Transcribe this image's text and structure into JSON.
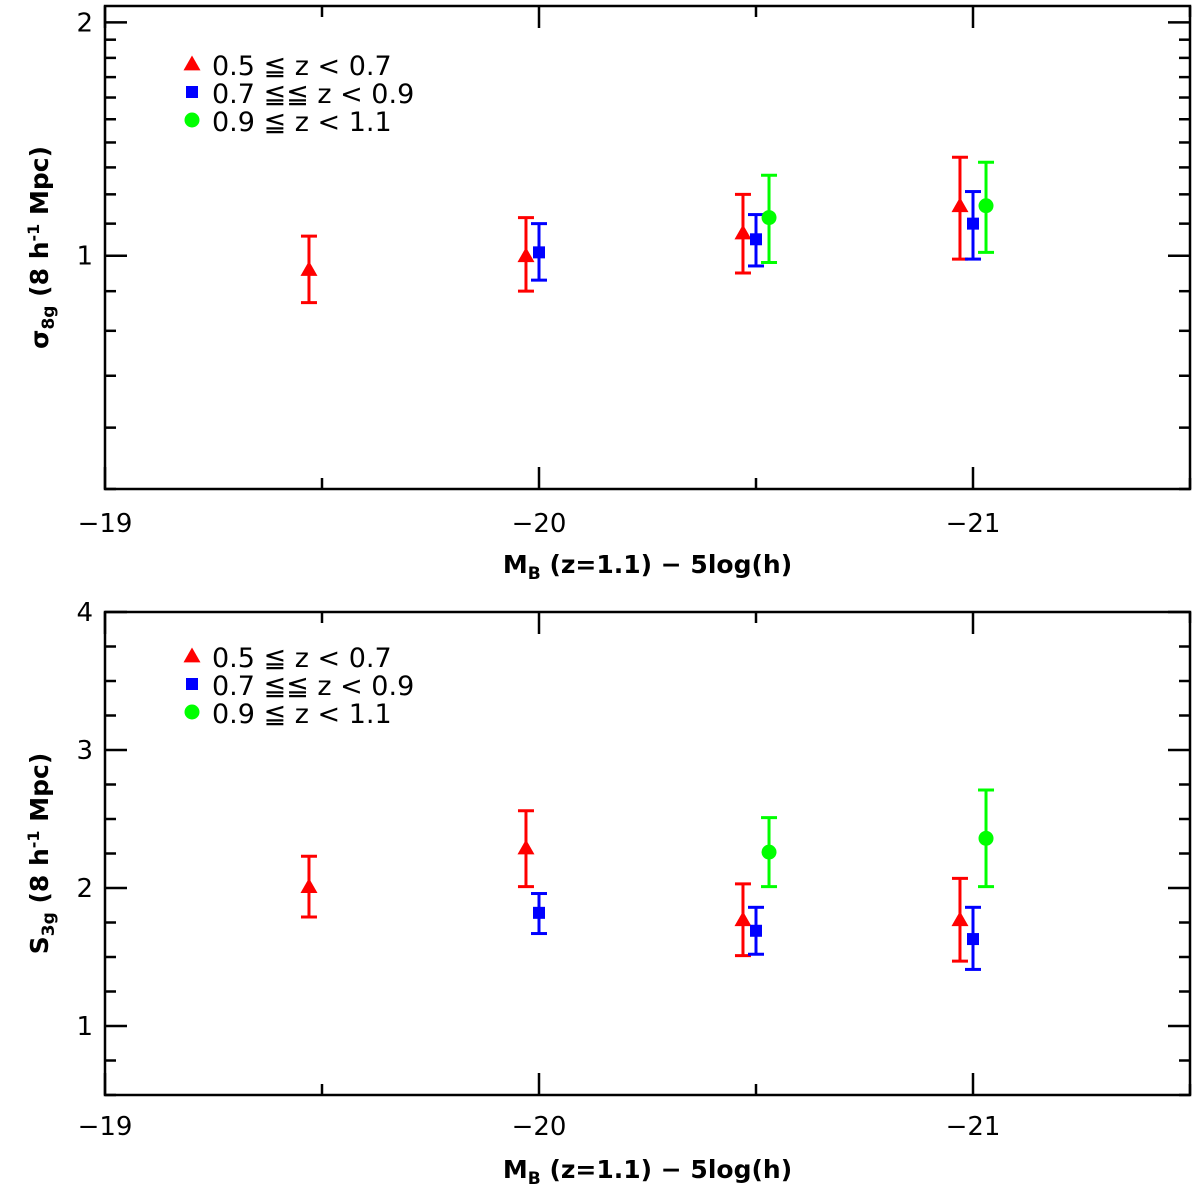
{
  "chart_data": [
    {
      "type": "scatter",
      "panel": "top",
      "xlabel": "M_B (z=1.1) − 5log(h)",
      "xlabel_main": "M",
      "xlabel_sub": "B",
      "xlabel_rest": " (z=1.1) − 5log(h)",
      "ylabel": "σ_8g (8 h⁻¹ Mpc)",
      "ylabel_main": "σ",
      "ylabel_sub": "8g",
      "ylabel_rest": " (8 h",
      "ylabel_sup": "-1",
      "ylabel_end": " Mpc)",
      "y_scale": "log",
      "xlim": [
        -19,
        -21.5
      ],
      "ylim": [
        0.5,
        2.1
      ],
      "x_ticks": [
        -19,
        -20,
        -21
      ],
      "x_tick_labels": [
        "−19",
        "−20",
        "−21"
      ],
      "y_ticks": [
        1,
        2
      ],
      "y_tick_labels": [
        "1",
        "2"
      ],
      "legend_position": "top-left",
      "series": [
        {
          "name": "0.5 ≦ z < 0.7",
          "color": "#ff0000",
          "marker": "triangle",
          "points": [
            {
              "x": -19.47,
              "y": 0.96,
              "ylo": 0.87,
              "yhi": 1.06
            },
            {
              "x": -19.97,
              "y": 1.0,
              "ylo": 0.9,
              "yhi": 1.12
            },
            {
              "x": -20.47,
              "y": 1.07,
              "ylo": 0.95,
              "yhi": 1.2
            },
            {
              "x": -20.97,
              "y": 1.16,
              "ylo": 0.99,
              "yhi": 1.34
            }
          ]
        },
        {
          "name": "0.7 ≦≦ z < 0.9",
          "color": "#0000ff",
          "marker": "square",
          "points": [
            {
              "x": -20.0,
              "y": 1.01,
              "ylo": 0.93,
              "yhi": 1.1
            },
            {
              "x": -20.5,
              "y": 1.05,
              "ylo": 0.97,
              "yhi": 1.13
            },
            {
              "x": -21.0,
              "y": 1.1,
              "ylo": 0.99,
              "yhi": 1.21
            }
          ]
        },
        {
          "name": "0.9 ≦ z < 1.1",
          "color": "#00ff00",
          "marker": "circle",
          "points": [
            {
              "x": -20.53,
              "y": 1.12,
              "ylo": 0.98,
              "yhi": 1.27
            },
            {
              "x": -21.03,
              "y": 1.16,
              "ylo": 1.01,
              "yhi": 1.32
            }
          ]
        }
      ]
    },
    {
      "type": "scatter",
      "panel": "bottom",
      "xlabel": "M_B (z=1.1) − 5log(h)",
      "xlabel_main": "M",
      "xlabel_sub": "B",
      "xlabel_rest": " (z=1.1) − 5log(h)",
      "ylabel": "S_3g (8 h⁻¹ Mpc)",
      "ylabel_main": "S",
      "ylabel_sub": "3g",
      "ylabel_rest": " (8 h",
      "ylabel_sup": "-1",
      "ylabel_end": " Mpc)",
      "y_scale": "linear",
      "xlim": [
        -19,
        -21.5
      ],
      "ylim": [
        0.5,
        4
      ],
      "x_ticks": [
        -19,
        -20,
        -21
      ],
      "x_tick_labels": [
        "−19",
        "−20",
        "−21"
      ],
      "y_ticks": [
        1,
        2,
        3,
        4
      ],
      "y_tick_labels": [
        "1",
        "2",
        "3",
        "4"
      ],
      "legend_position": "top-left",
      "series": [
        {
          "name": "0.5 ≦ z < 0.7",
          "color": "#ff0000",
          "marker": "triangle",
          "points": [
            {
              "x": -19.47,
              "y": 2.01,
              "ylo": 1.79,
              "yhi": 2.23
            },
            {
              "x": -19.97,
              "y": 2.29,
              "ylo": 2.01,
              "yhi": 2.56
            },
            {
              "x": -20.47,
              "y": 1.77,
              "ylo": 1.51,
              "yhi": 2.03
            },
            {
              "x": -20.97,
              "y": 1.77,
              "ylo": 1.47,
              "yhi": 2.07
            }
          ]
        },
        {
          "name": "0.7 ≦≦ z < 0.9",
          "color": "#0000ff",
          "marker": "square",
          "points": [
            {
              "x": -20.0,
              "y": 1.82,
              "ylo": 1.67,
              "yhi": 1.96
            },
            {
              "x": -20.5,
              "y": 1.69,
              "ylo": 1.52,
              "yhi": 1.86
            },
            {
              "x": -21.0,
              "y": 1.63,
              "ylo": 1.41,
              "yhi": 1.86
            }
          ]
        },
        {
          "name": "0.9 ≦ z < 1.1",
          "color": "#00ff00",
          "marker": "circle",
          "points": [
            {
              "x": -20.53,
              "y": 2.26,
              "ylo": 2.01,
              "yhi": 2.51
            },
            {
              "x": -21.03,
              "y": 2.36,
              "ylo": 2.01,
              "yhi": 2.71
            }
          ]
        }
      ]
    }
  ]
}
